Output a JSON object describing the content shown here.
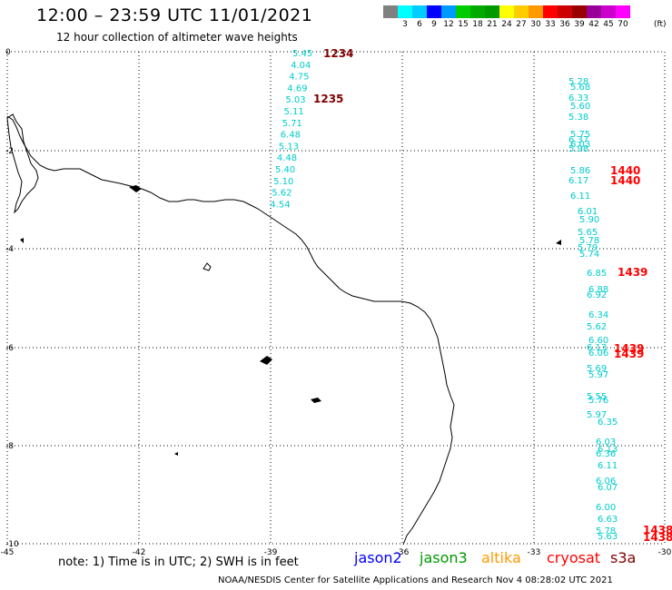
{
  "header": {
    "title": "12:00 – 23:59 UTC 11/01/2021",
    "subtitle": "12 hour collection of altimeter wave heights"
  },
  "colorbar": {
    "colors": [
      "#808080",
      "#00ffff",
      "#00ccff",
      "#0000ff",
      "#0099ff",
      "#00cc00",
      "#00aa00",
      "#009900",
      "#ffff00",
      "#ffcc00",
      "#ff9900",
      "#ff0000",
      "#cc0000",
      "#990000",
      "#990099",
      "#cc00cc",
      "#ff00ff"
    ],
    "labels": [
      "",
      "3",
      "6",
      "9",
      "12",
      "15",
      "18",
      "21",
      "24",
      "27",
      "30",
      "33",
      "36",
      "39",
      "42",
      "45",
      "70"
    ],
    "unit": "(ft)"
  },
  "map": {
    "lon_labels": [
      "-45",
      "-42",
      "-39",
      "-36",
      "-33",
      "-30"
    ],
    "lat_labels": [
      "0",
      "-2",
      "-4",
      "-6",
      "-8",
      "-10"
    ],
    "track_west": {
      "color": "#00cccc",
      "values": [
        "5.45",
        "4.04",
        "4.75",
        "4.69",
        "5.03",
        "5.11",
        "5.71",
        "6.48",
        "5.13",
        "4.48",
        "5.40",
        "5.10",
        "5.62",
        "4.54"
      ],
      "time_labels": [
        {
          "text": "1234",
          "color": "#800000"
        },
        {
          "text": "1235",
          "color": "#800000"
        }
      ]
    },
    "track_east": {
      "color": "#00cccc",
      "values": [
        "5.28",
        "5.68",
        "6.33",
        "5.60",
        "5.38",
        "5.75",
        "6.37",
        "6.03",
        "5.98",
        "5.86",
        "6.17",
        "6.11",
        "6.01",
        "5.90",
        "5.65",
        "5.78",
        "5.79",
        "5.74",
        "6.85",
        "6.88",
        "6.92",
        "6.34",
        "5.62",
        "6.60",
        "6.13",
        "6.06",
        "5.69",
        "5.97",
        "5.55",
        "5.76",
        "5.97",
        "6.35",
        "6.03",
        "6.13",
        "6.36",
        "6.11",
        "6.06",
        "6.07",
        "6.00",
        "6.63",
        "5.78",
        "5.63"
      ],
      "time_labels": [
        {
          "text": "1440",
          "color": "#ff0000"
        },
        {
          "text": "1440",
          "color": "#ff0000"
        },
        {
          "text": "1439",
          "color": "#ff0000"
        },
        {
          "text": "1439",
          "color": "#ff0000"
        },
        {
          "text": "1439",
          "color": "#ff0000"
        },
        {
          "text": "1438",
          "color": "#ff0000"
        },
        {
          "text": "1438",
          "color": "#ff0000"
        }
      ]
    }
  },
  "footer": {
    "note": "note: 1) Time is in UTC; 2) SWH is in feet",
    "legend": [
      {
        "label": "jason2",
        "color": "#0000ff"
      },
      {
        "label": "jason3",
        "color": "#009900"
      },
      {
        "label": "altika",
        "color": "#ff9900"
      },
      {
        "label": "cryosat",
        "color": "#ff0000"
      },
      {
        "label": "s3a",
        "color": "#800000"
      }
    ],
    "credit": "NOAA/NESDIS Center for Satellite Applications and Research   Nov  4 08:28:02 UTC 2021"
  }
}
